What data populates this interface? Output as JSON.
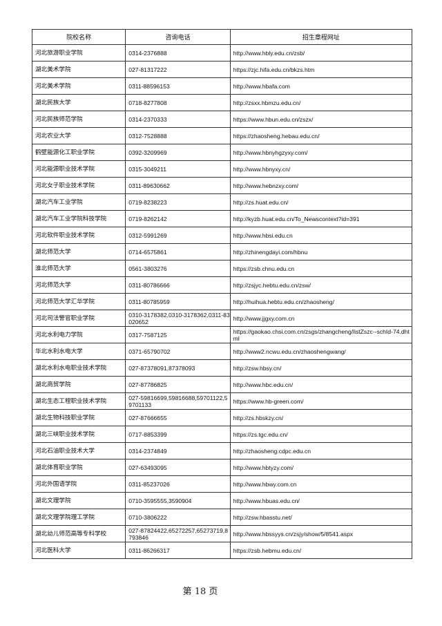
{
  "table": {
    "headers": [
      "院校名称",
      "咨询电话",
      "招生章程网址"
    ],
    "rows": [
      [
        "河北旅游职业学院",
        "0314-2376888",
        "http://www.hbly.edu.cn/zsb/"
      ],
      [
        "湖北美术学院",
        "027-81317222",
        "https://zjc.hifa.edu.cn/bkzs.htm"
      ],
      [
        "河北美术学院",
        "0311-88596153",
        "http://www.hbafa.com"
      ],
      [
        "湖北民族大学",
        "0718-8277808",
        "http://zsxx.hbmzu.edu.cn/"
      ],
      [
        "河北民族师范学院",
        "0314-2370333",
        "https://www.hbun.edu.cn/zszx/"
      ],
      [
        "河北农业大学",
        "0312-7528888",
        "https://zhaosheng.hebau.edu.cn/"
      ],
      [
        "鹤壁能源化工职业学院",
        "0392-3209969",
        "http://www.hbnyhgzyxy.com/"
      ],
      [
        "河北能源职业技术学院",
        "0315-3049211",
        "http://www.hbnyxy.cn/"
      ],
      [
        "河北女子职业技术学院",
        "0311-89630662",
        "http://www.hebnzxy.com/"
      ],
      [
        "湖北汽车工业学院",
        "0719-8238223",
        "http://zs.huat.edu.cn/"
      ],
      [
        "湖北汽车工业学院科技学院",
        "0719-8262142",
        "http://kyzb.huat.edu.cn/To_Newscontext?id=391"
      ],
      [
        "河北软件职业技术学院",
        "0312-5991269",
        "http://www.hbsi.edu.cn"
      ],
      [
        "湖北师范大学",
        "0714-6575861",
        "http://zhinengdayi.com/hbnu"
      ],
      [
        "淮北师范大学",
        "0561-3803276",
        "https://zsb.chnu.edu.cn"
      ],
      [
        "河北师范大学",
        "0311-80786666",
        "http://zsjyc.hebtu.edu.cn/zsw/"
      ],
      [
        "河北师范大学汇华学院",
        "0311-80785959",
        "http://huihua.hebtu.edu.cn/zhaosheng/"
      ],
      [
        "河北司法警官职业学院",
        "0310-3178382,0310-3178362,0311-83020652",
        "http://www.jjgxy.com.cn"
      ],
      [
        "河北水利电力学院",
        "0317-7587125",
        "https://gaokao.chsi.com.cn/zsgs/zhangcheng/listZszc--schId-74.dhtml"
      ],
      [
        "华北水利水电大学",
        "0371-65790702",
        "http://www2.ncwu.edu.cn/zhaoshengwang/"
      ],
      [
        "湖北水利水电职业技术学院",
        "027-87378091,87378093",
        "http://zsw.hbsy.cn/"
      ],
      [
        "湖北商贸学院",
        "027-87786825",
        "http://www.hbc.edu.cn/"
      ],
      [
        "湖北生态工程职业技术学院",
        "027-59816699,59816688,59701122,59701133",
        "https://www.hb-green.com/"
      ],
      [
        "湖北生物科技职业学院",
        "027-87666655",
        "http://zs.hbskzy.cn/"
      ],
      [
        "湖北三峡职业技术学院",
        "0717-8853399",
        "https://zs.tgc.edu.cn/"
      ],
      [
        "河北石油职业技术大学",
        "0314-2374849",
        "http://zhaosheng.cdpc.edu.cn"
      ],
      [
        "湖北体育职业学院",
        "027-63493095",
        "http://www.hbtyzy.com/"
      ],
      [
        "河北外国语学院",
        "0311-85237026",
        "http://www.hbwy.com.cn"
      ],
      [
        "湖北文理学院",
        "0710-3595555,3590904",
        "http://www.hbuas.edu.cn/"
      ],
      [
        "湖北文理学院理工学院",
        "0710-3806222",
        "http://zsw.hbasstu.net/"
      ],
      [
        "湖北幼儿师范高等专科学校",
        "027-87824422,65272257,65273719,8793846",
        "http://www.hbssyys.cn/zsjy/show/5/8541.aspx"
      ],
      [
        "河北医科大学",
        "0311-86266317",
        "https://zsb.hebmu.edu.cn/"
      ]
    ]
  },
  "footer": {
    "page_label": "第 18 页"
  }
}
